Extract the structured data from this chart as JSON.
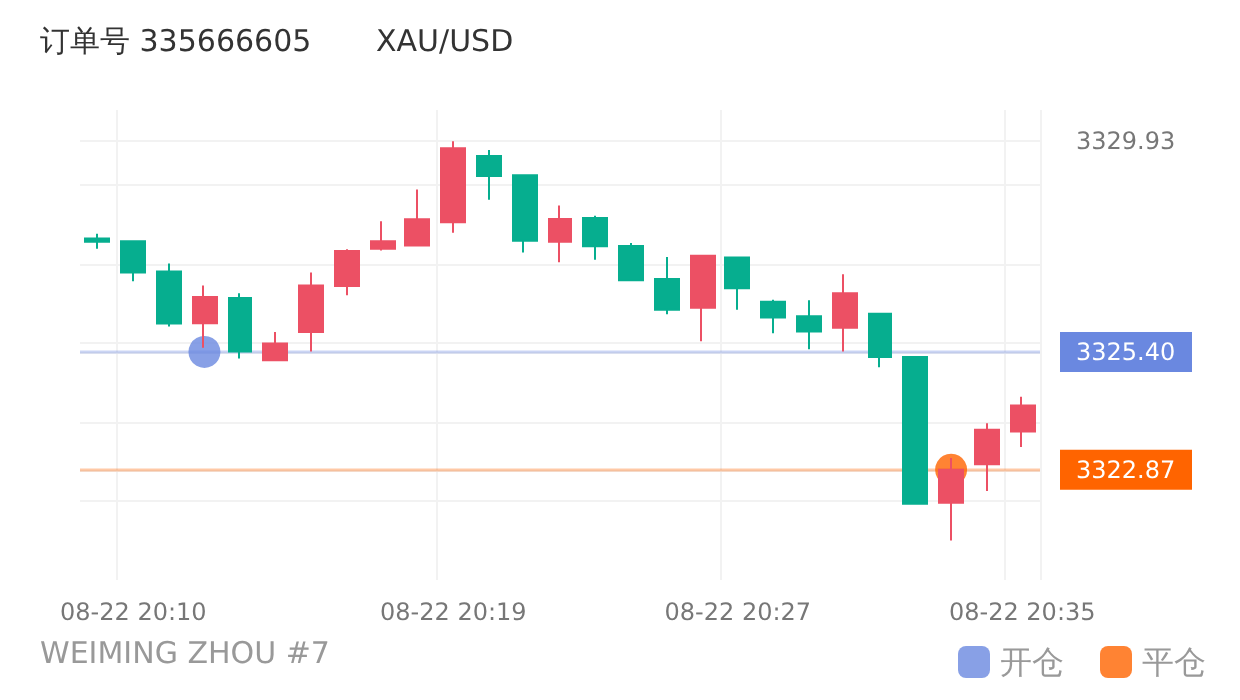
{
  "chart_data": {
    "type": "candlestick",
    "title": "订单号 335666605",
    "subtitle": "XAU/USD",
    "annotations": [
      "WEIMING ZHOU #7"
    ],
    "categories": [
      null,
      "08-22 20:10",
      null,
      null,
      null,
      null,
      null,
      null,
      null,
      null,
      "08-22 20:19",
      null,
      null,
      null,
      null,
      null,
      null,
      null,
      "08-22 20:27",
      null,
      null,
      null,
      null,
      null,
      null,
      null,
      "08-22 20:35"
    ],
    "series": [
      {
        "type": "candlestick",
        "ohlc": [
          [
            3327.84,
            3327.94,
            3327.62,
            3327.77
          ],
          [
            3327.78,
            3327.78,
            3326.92,
            3327.11
          ],
          [
            3327.13,
            3327.3,
            3325.95,
            3326.01
          ],
          [
            3326.02,
            3326.83,
            3325.49,
            3326.58
          ],
          [
            3326.56,
            3326.66,
            3325.26,
            3325.41
          ],
          [
            3325.22,
            3325.83,
            3325.22,
            3325.58
          ],
          [
            3325.83,
            3327.11,
            3325.41,
            3326.83
          ],
          [
            3326.82,
            3327.61,
            3326.62,
            3327.57
          ],
          [
            3327.62,
            3328.21,
            3327.58,
            3327.78
          ],
          [
            3327.69,
            3328.89,
            3327.67,
            3328.25
          ],
          [
            3328.19,
            3329.93,
            3327.96,
            3329.78
          ],
          [
            3329.61,
            3329.74,
            3328.67,
            3329.18
          ],
          [
            3329.2,
            3329.2,
            3327.54,
            3327.79
          ],
          [
            3327.77,
            3328.55,
            3327.33,
            3328.26
          ],
          [
            3328.28,
            3328.33,
            3327.38,
            3327.67
          ],
          [
            3327.68,
            3327.74,
            3326.94,
            3326.94
          ],
          [
            3326.97,
            3327.44,
            3326.21,
            3326.31
          ],
          [
            3326.35,
            3327.47,
            3325.63,
            3327.47
          ],
          [
            3327.43,
            3327.43,
            3326.31,
            3326.77
          ],
          [
            3326.48,
            3326.52,
            3325.8,
            3326.14
          ],
          [
            3326.17,
            3326.51,
            3325.46,
            3325.84
          ],
          [
            3325.92,
            3327.07,
            3325.41,
            3326.66
          ],
          [
            3326.22,
            3326.22,
            3325.07,
            3325.29
          ],
          [
            3325.29,
            3325.29,
            3322.14,
            3322.14
          ],
          [
            3322.16,
            3323.12,
            3321.35,
            3322.87
          ],
          [
            3322.99,
            3323.87,
            3322.41,
            3323.73
          ],
          [
            3323.69,
            3324.44,
            3323.36,
            3324.25
          ]
        ],
        "colors": [
          "#06ae8f",
          "#06ae8f",
          "#06ae8f",
          "#ec5064",
          "#06ae8f",
          "#ec5064",
          "#ec5064",
          "#ec5064",
          "#ec5064",
          "#ec5064",
          "#ec5064",
          "#06ae8f",
          "#06ae8f",
          "#ec5064",
          "#06ae8f",
          "#06ae8f",
          "#06ae8f",
          "#ec5064",
          "#06ae8f",
          "#06ae8f",
          "#06ae8f",
          "#ec5064",
          "#06ae8f",
          "#06ae8f",
          "#ec5064",
          "#ec5064",
          "#ec5064"
        ]
      },
      {
        "type": "scatter",
        "name": "开仓",
        "color": "#6a88e0",
        "values": [
          null,
          null,
          null,
          3325.4,
          null,
          null,
          null,
          null,
          null,
          null,
          null,
          null,
          null,
          null,
          null,
          null,
          null,
          null,
          null,
          null,
          null,
          null,
          null,
          null,
          null,
          null,
          null
        ]
      },
      {
        "type": "scatter",
        "name": "平仓",
        "color": "#ff6400",
        "values": [
          null,
          null,
          null,
          null,
          null,
          null,
          null,
          null,
          null,
          null,
          null,
          null,
          null,
          null,
          null,
          null,
          null,
          null,
          null,
          null,
          null,
          null,
          null,
          null,
          3322.87,
          null,
          null
        ]
      }
    ],
    "ylim": [
      3320.5,
      3330.6
    ],
    "yticks": [
      {
        "value": 3322.2,
        "label": null
      },
      {
        "value": 3323.9,
        "label": null
      },
      {
        "value": 3325.6,
        "label": null
      },
      {
        "value": 3327.3,
        "label": null
      },
      {
        "value": 3329.0,
        "label": null
      },
      {
        "value": 3322.87,
        "label": "3322.87"
      },
      {
        "value": 3325.4,
        "label": "3325.40"
      },
      3329.93
    ],
    "ref_lines": [
      {
        "axis": "y",
        "value": 3325.4,
        "color": "#6a88e0"
      },
      {
        "axis": "y",
        "value": 3322.87,
        "color": "#ff6400"
      }
    ],
    "grid": true,
    "legend": "bottom right",
    "marker": "circle"
  }
}
